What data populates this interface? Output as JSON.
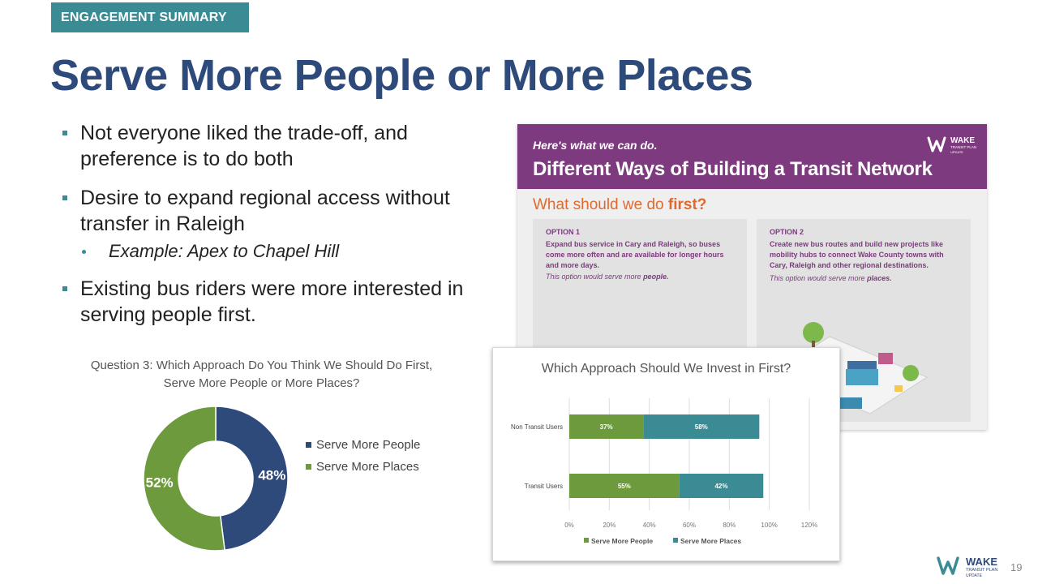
{
  "slide": {
    "section": "ENGAGEMENT SUMMARY",
    "title": "Serve More People or More Places",
    "page_number": "19"
  },
  "bullets": {
    "b1": "Not everyone liked the trade-off, and preference is to do both",
    "b2": "Desire to expand regional access without transfer in Raleigh",
    "b2_sub": "Example: Apex to Chapel Hill",
    "b3": "Existing bus riders were more interested in serving people first."
  },
  "flyer": {
    "kicker": "Here's what we can do.",
    "heading": "Different Ways of Building a Transit Network",
    "question_prefix": "What should we do ",
    "question_emph": "first?",
    "logo_text": "WAKE",
    "logo_sub": "TRANSIT PLAN",
    "logo_tag": "UPDATE",
    "option1": {
      "label": "OPTION 1",
      "desc": "Expand bus service in Cary and Raleigh, so buses come more often and are available for longer hours and more days.",
      "note_prefix": "This option would serve more ",
      "note_emph": "people."
    },
    "option2": {
      "label": "OPTION 2",
      "desc": "Create new bus routes and build new projects like mobility hubs to connect Wake County towns with Cary, Raleigh and other regional destinations.",
      "note_prefix": "This option would serve more ",
      "note_emph": "places."
    }
  },
  "colors": {
    "people": "#2e4a7a",
    "places": "#6c9a3d",
    "bar_people": "#6c9a3d",
    "bar_places": "#3b8b94",
    "accent": "#3b8b94",
    "flyer_purple": "#7d3a7e"
  },
  "footer": {
    "logo_text": "WAKE",
    "logo_sub": "TRANSIT PLAN",
    "logo_tag": "UPDATE"
  },
  "chart_data": [
    {
      "type": "pie",
      "title": "Question 3: Which Approach Do You Think We Should Do First, Serve More People or More Places?",
      "categories": [
        "Serve More People",
        "Serve More Places"
      ],
      "values": [
        48,
        52
      ],
      "labels": [
        "48%",
        "52%"
      ],
      "legend": "right"
    },
    {
      "type": "bar",
      "orientation": "horizontal",
      "stacked": true,
      "title": "Which Approach Should We Invest in First?",
      "categories": [
        "Non Transit Users",
        "Transit Users"
      ],
      "series": [
        {
          "name": "Serve More People",
          "values": [
            37,
            55
          ],
          "labels": [
            "37%",
            "55%"
          ]
        },
        {
          "name": "Serve More Places",
          "values": [
            58,
            42
          ],
          "labels": [
            "58%",
            "42%"
          ]
        }
      ],
      "xlim": [
        0,
        120
      ],
      "xticks": [
        "0%",
        "20%",
        "40%",
        "60%",
        "80%",
        "100%",
        "120%"
      ],
      "grid": true,
      "legend": "bottom"
    }
  ]
}
